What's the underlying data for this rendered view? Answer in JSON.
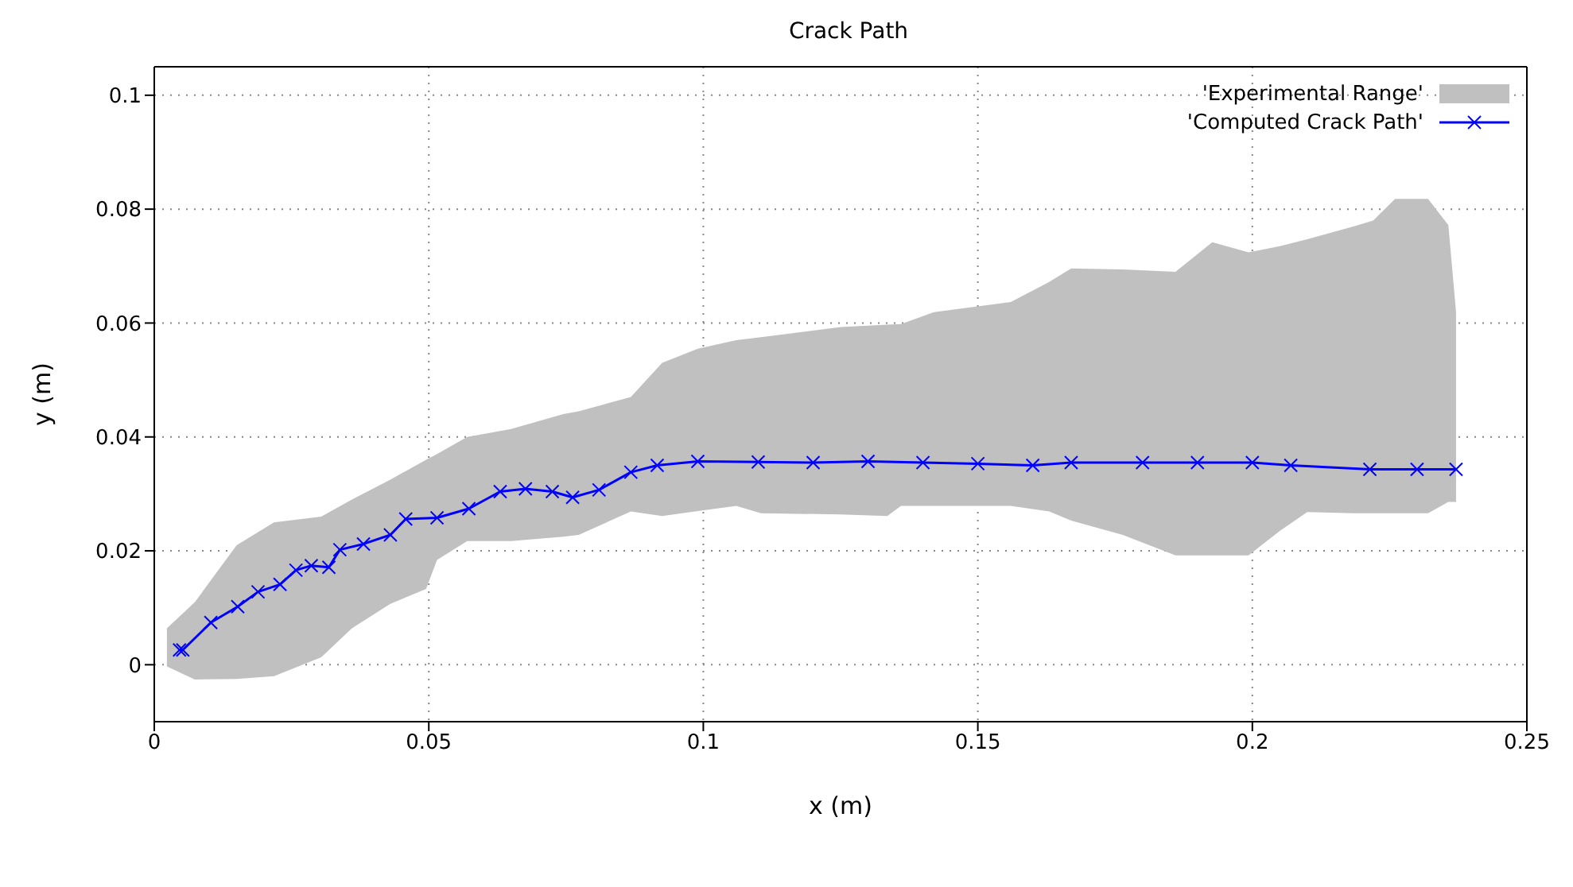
{
  "chart_data": {
    "type": "line",
    "title": "Crack Path",
    "xlabel": "x (m)",
    "ylabel": "y (m)",
    "xlim": [
      0,
      0.25
    ],
    "xticks": [
      0,
      0.05,
      0.1,
      0.15,
      0.2,
      0.25
    ],
    "ylim": [
      -0.01,
      0.105
    ],
    "yticks": [
      0,
      0.02,
      0.04,
      0.06,
      0.08,
      0.1
    ],
    "grid": true,
    "legend": "top right",
    "line_style": "solid",
    "series": [
      {
        "name": "'Experimental Range'",
        "type": "area",
        "color": "#c0c0c0",
        "x": [
          0.0023,
          0.0074,
          0.015,
          0.0218,
          0.0304,
          0.036,
          0.043,
          0.0495,
          0.0515,
          0.057,
          0.065,
          0.0745,
          0.0773,
          0.0868,
          0.0925,
          0.099,
          0.106,
          0.1105,
          0.125,
          0.1335,
          0.136,
          0.142,
          0.156,
          0.163,
          0.167,
          0.1764,
          0.186,
          0.1927,
          0.1993,
          0.205,
          0.21,
          0.2185,
          0.222,
          0.226,
          0.232,
          0.2357,
          0.2371
        ],
        "lower": [
          -0.0003,
          -0.0026,
          -0.0025,
          -0.002,
          0.0013,
          0.0064,
          0.0107,
          0.0133,
          0.0184,
          0.0217,
          0.0217,
          0.0225,
          0.0228,
          0.0269,
          0.0261,
          0.027,
          0.0279,
          0.0266,
          0.0264,
          0.0261,
          0.0279,
          0.0279,
          0.0279,
          0.0269,
          0.0253,
          0.0228,
          0.0192,
          0.0192,
          0.0192,
          0.0235,
          0.0268,
          0.0266,
          0.0266,
          0.0266,
          0.0266,
          0.0286,
          0.0286
        ],
        "values": [
          null,
          null,
          null,
          null,
          null,
          null,
          null,
          null,
          null,
          null,
          null,
          null,
          null,
          null,
          null,
          null,
          null,
          null,
          null,
          null,
          null,
          null,
          null,
          null,
          null,
          null,
          null,
          null,
          null,
          null,
          null,
          null,
          null,
          null,
          null,
          null,
          null
        ],
        "upper": [
          0.0064,
          0.011,
          0.021,
          0.025,
          0.026,
          0.029,
          0.0325,
          0.036,
          0.037,
          0.04,
          0.0414,
          0.044,
          0.0445,
          0.047,
          0.053,
          0.0555,
          0.057,
          0.0575,
          0.0593,
          0.0597,
          0.0598,
          0.0619,
          0.0637,
          0.0672,
          0.0696,
          0.0694,
          0.069,
          0.0742,
          0.0724,
          0.0735,
          0.0747,
          0.077,
          0.078,
          0.0818,
          0.0818,
          0.0772,
          0.0619
        ]
      },
      {
        "name": "'Computed Crack Path'",
        "type": "line",
        "color": "#0000ff",
        "marker": "cross",
        "x": [
          0.0046,
          0.0052,
          0.0103,
          0.0152,
          0.0189,
          0.0229,
          0.0258,
          0.0286,
          0.0318,
          0.0338,
          0.0381,
          0.043,
          0.0458,
          0.0515,
          0.0573,
          0.063,
          0.0676,
          0.0725,
          0.0762,
          0.081,
          0.0868,
          0.0916,
          0.099,
          0.11,
          0.12,
          0.13,
          0.14,
          0.15,
          0.16,
          0.167,
          0.18,
          0.19,
          0.2,
          0.207,
          0.2214,
          0.23,
          0.2371
        ],
        "values": [
          0.0026,
          0.0026,
          0.0074,
          0.0102,
          0.0128,
          0.0141,
          0.0166,
          0.0174,
          0.0171,
          0.0202,
          0.0212,
          0.0228,
          0.0256,
          0.0258,
          0.0274,
          0.0304,
          0.0309,
          0.0304,
          0.0294,
          0.0307,
          0.0338,
          0.035,
          0.0357,
          0.0356,
          0.0355,
          0.0357,
          0.0355,
          0.0353,
          0.035,
          0.0355,
          0.0355,
          0.0355,
          0.0355,
          0.035,
          0.0343,
          0.0343,
          0.0343
        ]
      }
    ]
  }
}
